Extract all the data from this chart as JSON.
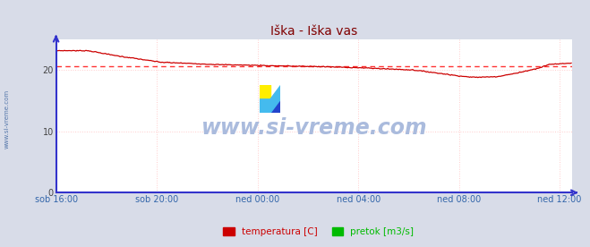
{
  "title": "Iška - Iška vas",
  "title_color": "#800000",
  "bg_color": "#d8dce8",
  "plot_bg_color": "#ffffff",
  "grid_color_h": "#ffcccc",
  "grid_color_v": "#ffcccc",
  "axis_color": "#3333cc",
  "x_tick_labels": [
    "sob 16:00",
    "sob 20:00",
    "ned 00:00",
    "ned 04:00",
    "ned 08:00",
    "ned 12:00"
  ],
  "x_tick_positions": [
    0,
    96,
    192,
    288,
    384,
    480
  ],
  "n_points": 492,
  "y_ticks": [
    0,
    10,
    20
  ],
  "ylim": [
    0,
    25
  ],
  "avg_line_y": 20.7,
  "avg_line_color": "#ff3333",
  "temp_color": "#cc0000",
  "pretok_color": "#00bb00",
  "watermark_text": "www.si-vreme.com",
  "watermark_color": "#aabbdd",
  "side_label": "www.si-vreme.com",
  "legend_temp": "temperatura [C]",
  "legend_pretok": "pretok [m3/s]",
  "tick_color": "#3366aa",
  "title_fontsize": 10
}
